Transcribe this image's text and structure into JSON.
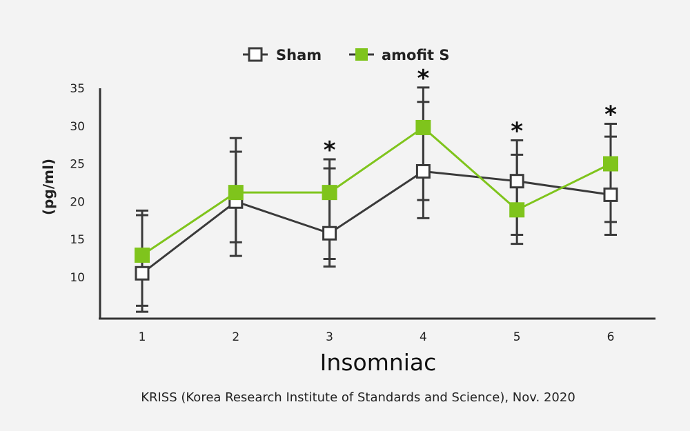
{
  "chart_data": {
    "type": "line",
    "categories": [
      "1",
      "2",
      "3",
      "4",
      "5",
      "6"
    ],
    "xlabel": "Insomniac",
    "ylabel": "(pg/ml)",
    "yticks": [
      10,
      15,
      20,
      25,
      30,
      35
    ],
    "ylim": [
      4.5,
      35
    ],
    "legend_position": "top-center",
    "grid": false,
    "series": [
      {
        "name": "Sham",
        "color": "#3a3a3a",
        "marker": "hollow-square",
        "values": [
          10.5,
          20.0,
          15.8,
          24.0,
          22.7,
          20.9
        ],
        "error": [
          [
            6.2,
            18.2
          ],
          [
            14.6,
            26.6
          ],
          [
            12.4,
            24.4
          ],
          [
            20.2,
            33.2
          ],
          [
            15.6,
            26.2
          ],
          [
            17.3,
            28.6
          ]
        ]
      },
      {
        "name": "amofit S",
        "color": "#7fc41c",
        "marker": "filled-square",
        "values": [
          12.9,
          21.2,
          21.2,
          29.8,
          18.9,
          25.0
        ],
        "error": [
          [
            5.4,
            18.8
          ],
          [
            12.8,
            28.4
          ],
          [
            11.4,
            25.6
          ],
          [
            17.8,
            35.1
          ],
          [
            14.4,
            28.1
          ],
          [
            15.6,
            30.3
          ]
        ]
      }
    ],
    "significance": [
      {
        "category": "3",
        "symbol": "*"
      },
      {
        "category": "4",
        "symbol": "*"
      },
      {
        "category": "5",
        "symbol": "*"
      },
      {
        "category": "6",
        "symbol": "*"
      }
    ],
    "source": "KRISS (Korea Research Institute of Standards and Science), Nov. 2020"
  }
}
